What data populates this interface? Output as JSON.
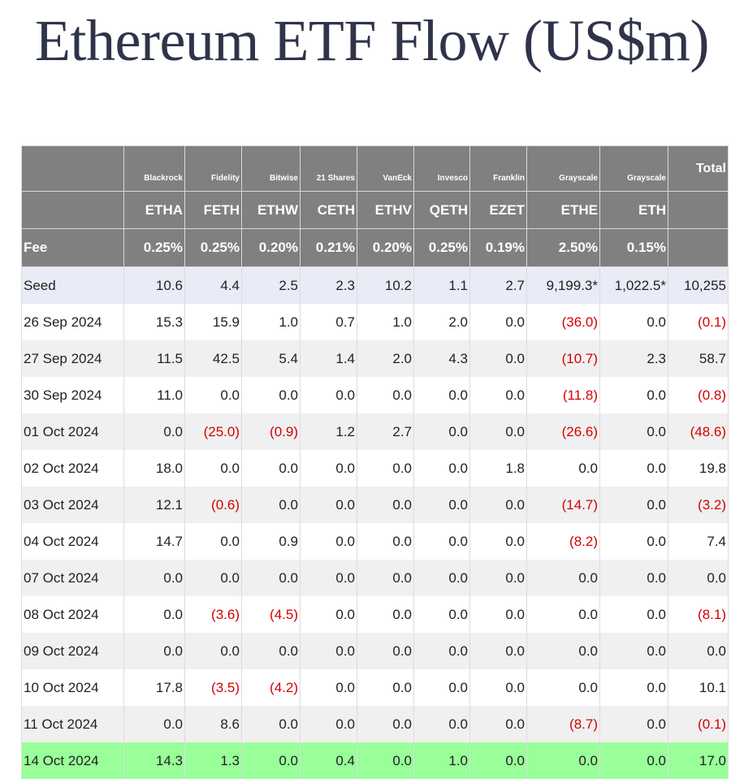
{
  "title": "Ethereum ETF Flow (US$m)",
  "colors": {
    "header_bg": "#808080",
    "header_text": "#ffffff",
    "negative": "#d40000",
    "seed_row": "#e9ecf6",
    "alt_row": "#f0f0f0",
    "highlight_row": "#99ff99",
    "title_text": "#30344a"
  },
  "chart_data": {
    "type": "table",
    "title": "Ethereum ETF Flow (US$m)",
    "header": {
      "issuers": [
        "Blackrock",
        "Fidelity",
        "Bitwise",
        "21 Shares",
        "VanEck",
        "Invesco",
        "Franklin",
        "Grayscale",
        "Grayscale"
      ],
      "total_label": "Total",
      "tickers": [
        "ETHA",
        "FETH",
        "ETHW",
        "CETH",
        "ETHV",
        "QETH",
        "EZET",
        "ETHE",
        "ETH"
      ],
      "fee_label": "Fee",
      "fees": [
        "0.25%",
        "0.25%",
        "0.20%",
        "0.21%",
        "0.20%",
        "0.25%",
        "0.19%",
        "2.50%",
        "0.15%"
      ]
    },
    "rows": [
      {
        "label": "Seed",
        "style": "seed",
        "cells": [
          "10.6",
          "4.4",
          "2.5",
          "2.3",
          "10.2",
          "1.1",
          "2.7",
          "9,199.3*",
          "1,022.5*",
          "10,255"
        ]
      },
      {
        "label": "26 Sep 2024",
        "style": "white",
        "cells": [
          "15.3",
          "15.9",
          "1.0",
          "0.7",
          "1.0",
          "2.0",
          "0.0",
          "(36.0)",
          "0.0",
          "(0.1)"
        ]
      },
      {
        "label": "27 Sep 2024",
        "style": "alt",
        "cells": [
          "11.5",
          "42.5",
          "5.4",
          "1.4",
          "2.0",
          "4.3",
          "0.0",
          "(10.7)",
          "2.3",
          "58.7"
        ]
      },
      {
        "label": "30 Sep 2024",
        "style": "white",
        "cells": [
          "11.0",
          "0.0",
          "0.0",
          "0.0",
          "0.0",
          "0.0",
          "0.0",
          "(11.8)",
          "0.0",
          "(0.8)"
        ]
      },
      {
        "label": "01 Oct 2024",
        "style": "alt",
        "cells": [
          "0.0",
          "(25.0)",
          "(0.9)",
          "1.2",
          "2.7",
          "0.0",
          "0.0",
          "(26.6)",
          "0.0",
          "(48.6)"
        ]
      },
      {
        "label": "02 Oct 2024",
        "style": "white",
        "cells": [
          "18.0",
          "0.0",
          "0.0",
          "0.0",
          "0.0",
          "0.0",
          "1.8",
          "0.0",
          "0.0",
          "19.8"
        ]
      },
      {
        "label": "03 Oct 2024",
        "style": "alt",
        "cells": [
          "12.1",
          "(0.6)",
          "0.0",
          "0.0",
          "0.0",
          "0.0",
          "0.0",
          "(14.7)",
          "0.0",
          "(3.2)"
        ]
      },
      {
        "label": "04 Oct 2024",
        "style": "white",
        "cells": [
          "14.7",
          "0.0",
          "0.9",
          "0.0",
          "0.0",
          "0.0",
          "0.0",
          "(8.2)",
          "0.0",
          "7.4"
        ]
      },
      {
        "label": "07 Oct 2024",
        "style": "alt",
        "cells": [
          "0.0",
          "0.0",
          "0.0",
          "0.0",
          "0.0",
          "0.0",
          "0.0",
          "0.0",
          "0.0",
          "0.0"
        ]
      },
      {
        "label": "08 Oct 2024",
        "style": "white",
        "cells": [
          "0.0",
          "(3.6)",
          "(4.5)",
          "0.0",
          "0.0",
          "0.0",
          "0.0",
          "0.0",
          "0.0",
          "(8.1)"
        ]
      },
      {
        "label": "09 Oct 2024",
        "style": "alt",
        "cells": [
          "0.0",
          "0.0",
          "0.0",
          "0.0",
          "0.0",
          "0.0",
          "0.0",
          "0.0",
          "0.0",
          "0.0"
        ]
      },
      {
        "label": "10 Oct 2024",
        "style": "white",
        "cells": [
          "17.8",
          "(3.5)",
          "(4.2)",
          "0.0",
          "0.0",
          "0.0",
          "0.0",
          "0.0",
          "0.0",
          "10.1"
        ]
      },
      {
        "label": "11 Oct 2024",
        "style": "alt",
        "cells": [
          "0.0",
          "8.6",
          "0.0",
          "0.0",
          "0.0",
          "0.0",
          "0.0",
          "(8.7)",
          "0.0",
          "(0.1)"
        ]
      },
      {
        "label": "14 Oct 2024",
        "style": "hl",
        "cells": [
          "14.3",
          "1.3",
          "0.0",
          "0.4",
          "0.0",
          "1.0",
          "0.0",
          "0.0",
          "0.0",
          "17.0"
        ]
      }
    ]
  }
}
